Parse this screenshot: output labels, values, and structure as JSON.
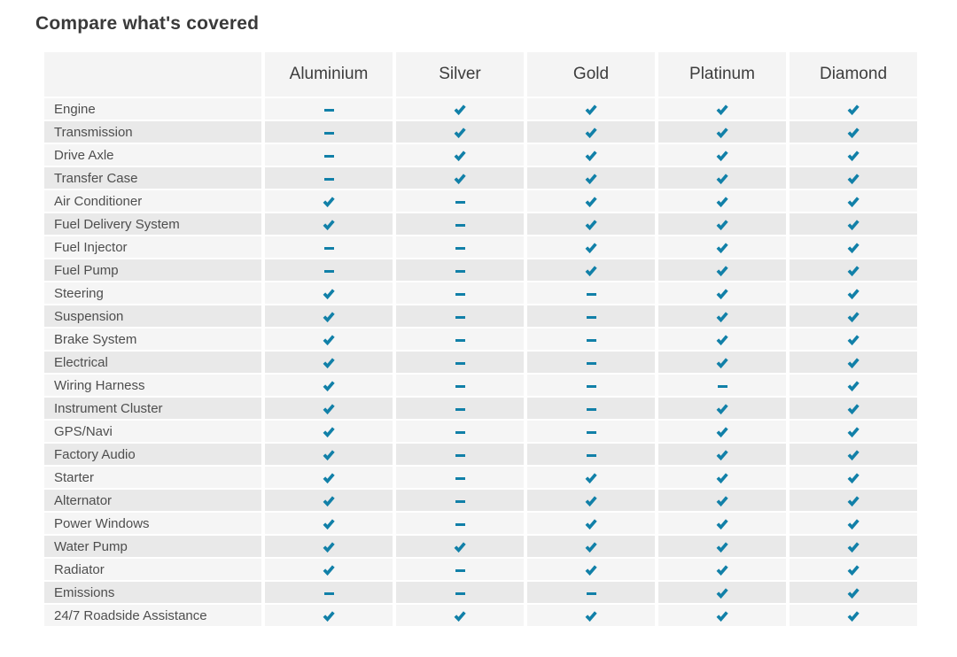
{
  "title": "Compare what's covered",
  "colors": {
    "accent": "#1180a8"
  },
  "table": {
    "columns": [
      "Aluminium",
      "Silver",
      "Gold",
      "Platinum",
      "Diamond"
    ],
    "mark_legend": {
      "check": "covered",
      "dash": "not covered"
    },
    "rows": [
      {
        "label": "Engine",
        "values": [
          "dash",
          "check",
          "check",
          "check",
          "check"
        ]
      },
      {
        "label": "Transmission",
        "values": [
          "dash",
          "check",
          "check",
          "check",
          "check"
        ]
      },
      {
        "label": "Drive Axle",
        "values": [
          "dash",
          "check",
          "check",
          "check",
          "check"
        ]
      },
      {
        "label": "Transfer Case",
        "values": [
          "dash",
          "check",
          "check",
          "check",
          "check"
        ]
      },
      {
        "label": "Air Conditioner",
        "values": [
          "check",
          "dash",
          "check",
          "check",
          "check"
        ]
      },
      {
        "label": "Fuel Delivery System",
        "values": [
          "check",
          "dash",
          "check",
          "check",
          "check"
        ]
      },
      {
        "label": "Fuel Injector",
        "values": [
          "dash",
          "dash",
          "check",
          "check",
          "check"
        ]
      },
      {
        "label": "Fuel Pump",
        "values": [
          "dash",
          "dash",
          "check",
          "check",
          "check"
        ]
      },
      {
        "label": "Steering",
        "values": [
          "check",
          "dash",
          "dash",
          "check",
          "check"
        ]
      },
      {
        "label": "Suspension",
        "values": [
          "check",
          "dash",
          "dash",
          "check",
          "check"
        ]
      },
      {
        "label": "Brake System",
        "values": [
          "check",
          "dash",
          "dash",
          "check",
          "check"
        ]
      },
      {
        "label": "Electrical",
        "values": [
          "check",
          "dash",
          "dash",
          "check",
          "check"
        ]
      },
      {
        "label": "Wiring Harness",
        "values": [
          "check",
          "dash",
          "dash",
          "dash",
          "check"
        ]
      },
      {
        "label": "Instrument Cluster",
        "values": [
          "check",
          "dash",
          "dash",
          "check",
          "check"
        ]
      },
      {
        "label": "GPS/Navi",
        "values": [
          "check",
          "dash",
          "dash",
          "check",
          "check"
        ]
      },
      {
        "label": "Factory Audio",
        "values": [
          "check",
          "dash",
          "dash",
          "check",
          "check"
        ]
      },
      {
        "label": "Starter",
        "values": [
          "check",
          "dash",
          "check",
          "check",
          "check"
        ]
      },
      {
        "label": "Alternator",
        "values": [
          "check",
          "dash",
          "check",
          "check",
          "check"
        ]
      },
      {
        "label": "Power Windows",
        "values": [
          "check",
          "dash",
          "check",
          "check",
          "check"
        ]
      },
      {
        "label": "Water Pump",
        "values": [
          "check",
          "check",
          "check",
          "check",
          "check"
        ]
      },
      {
        "label": "Radiator",
        "values": [
          "check",
          "dash",
          "check",
          "check",
          "check"
        ]
      },
      {
        "label": "Emissions",
        "values": [
          "dash",
          "dash",
          "dash",
          "check",
          "check"
        ]
      },
      {
        "label": "24/7 Roadside Assistance",
        "values": [
          "check",
          "check",
          "check",
          "check",
          "check"
        ]
      }
    ]
  }
}
